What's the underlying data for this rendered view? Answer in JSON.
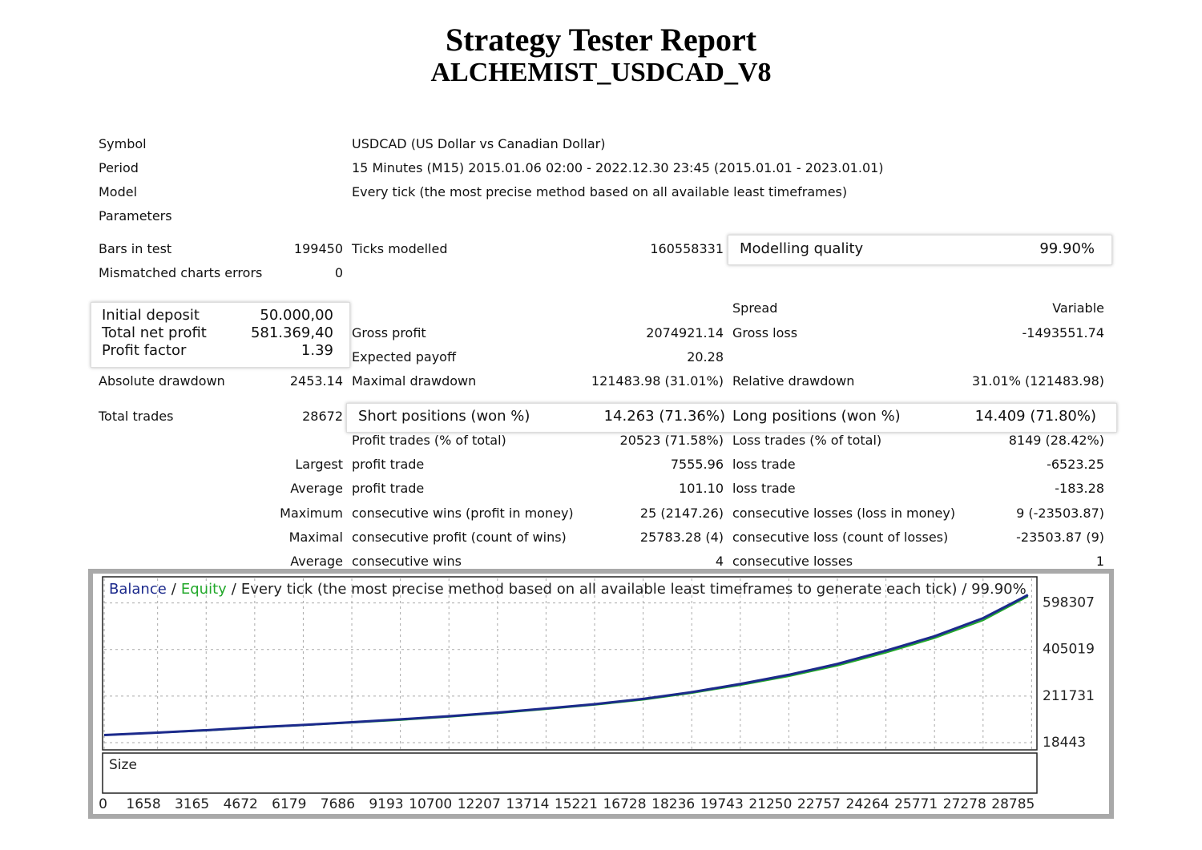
{
  "header": {
    "title": "Strategy Tester Report",
    "subtitle": "ALCHEMIST_USDCAD_V8"
  },
  "info": [
    {
      "label": "Symbol",
      "value": "USDCAD (US Dollar vs Canadian Dollar)"
    },
    {
      "label": "Period",
      "value": "15 Minutes (M15) 2015.01.06 02:00 - 2022.12.30 23:45 (2015.01.01 - 2023.01.01)"
    },
    {
      "label": "Model",
      "value": "Every tick (the most precise method based on all available least timeframes)"
    },
    {
      "label": "Parameters"
    }
  ],
  "stats": {
    "bars_in_test": {
      "label": "Bars in test",
      "value": "199450"
    },
    "ticks_modelled": {
      "label": "Ticks modelled",
      "value": "160558331"
    },
    "modelling_quality": {
      "label": "Modelling quality",
      "value": "99.90%"
    },
    "mismatched_charts_errors": {
      "label": "Mismatched charts errors",
      "value": "0"
    },
    "initial_deposit": {
      "label": "Initial deposit",
      "value": "50.000,00"
    },
    "total_net_profit": {
      "label": "Total net profit",
      "value": "581.369,40"
    },
    "profit_factor": {
      "label": "Profit factor",
      "value": "1.39"
    },
    "spread": {
      "label": "Spread",
      "value": "Variable"
    },
    "gross_profit": {
      "label": "Gross profit",
      "value": "2074921.14"
    },
    "gross_loss": {
      "label": "Gross loss",
      "value": "-1493551.74"
    },
    "expected_payoff": {
      "label": "Expected payoff",
      "value": "20.28"
    },
    "absolute_drawdown": {
      "label": "Absolute drawdown",
      "value": "2453.14"
    },
    "maximal_drawdown": {
      "label": "Maximal drawdown",
      "value": "121483.98 (31.01%)"
    },
    "relative_drawdown": {
      "label": "Relative drawdown",
      "value": "31.01% (121483.98)"
    },
    "total_trades": {
      "label": "Total trades",
      "value": "28672"
    },
    "short_positions": {
      "label": "Short positions (won %)",
      "value": "14.263 (71.36%)"
    },
    "long_positions": {
      "label": "Long positions (won %)",
      "value": "14.409 (71.80%)"
    },
    "profit_trades": {
      "label": "Profit trades (% of total)",
      "value": "20523 (71.58%)"
    },
    "loss_trades": {
      "label": "Loss trades (% of total)",
      "value": "8149 (28.42%)"
    }
  },
  "trade_stats": [
    {
      "prefix": "Largest",
      "profit_label": "profit trade",
      "profit_value": "7555.96",
      "loss_label": "loss trade",
      "loss_value": "-6523.25"
    },
    {
      "prefix": "Average",
      "profit_label": "profit trade",
      "profit_value": "101.10",
      "loss_label": "loss trade",
      "loss_value": "-183.28"
    },
    {
      "prefix": "Maximum",
      "profit_label": "consecutive wins (profit in money)",
      "profit_value": "25 (2147.26)",
      "loss_label": "consecutive losses (loss in money)",
      "loss_value": "9 (-23503.87)"
    },
    {
      "prefix": "Maximal",
      "profit_label": "consecutive profit (count of wins)",
      "profit_value": "25783.28 (4)",
      "loss_label": "consecutive loss (count of losses)",
      "loss_value": "-23503.87 (9)"
    },
    {
      "prefix": "Average",
      "profit_label": "consecutive wins",
      "profit_value": "4",
      "loss_label": "consecutive losses",
      "loss_value": "1"
    }
  ],
  "chart_data": {
    "type": "line",
    "title": "Every tick (the most precise method based on all available least timeframes to generate each tick) / 99.90%",
    "separator": "/",
    "size_label": "Size",
    "x": [
      0,
      1658,
      3165,
      4672,
      6179,
      7686,
      9193,
      10700,
      12207,
      13714,
      15221,
      16728,
      18236,
      19743,
      21250,
      22757,
      24264,
      25771,
      27278,
      28672
    ],
    "series": [
      {
        "name": "Equity",
        "color": "#22a82a",
        "values": [
          49000,
          59000,
          68000,
          80000,
          90000,
          101000,
          112000,
          125000,
          140000,
          157000,
          175000,
          196000,
          224000,
          257000,
          294000,
          338000,
          392000,
          452000,
          526000,
          625000
        ]
      },
      {
        "name": "Balance",
        "color": "#1c2a8c",
        "values": [
          50000,
          60000,
          70000,
          82000,
          92000,
          103000,
          115000,
          128000,
          143000,
          160000,
          178000,
          200000,
          228000,
          262000,
          300000,
          345000,
          400000,
          460000,
          535000,
          631369
        ]
      }
    ],
    "xlim": [
      0,
      28900
    ],
    "xticks": [
      0,
      1658,
      3165,
      4672,
      6179,
      7686,
      9193,
      10700,
      12207,
      13714,
      15221,
      16728,
      18236,
      19743,
      21250,
      22757,
      24264,
      25771,
      27278,
      28785
    ],
    "ylim": [
      -5000,
      700000
    ],
    "yticks": [
      18443,
      211731,
      405019,
      598307
    ],
    "grid": true
  }
}
